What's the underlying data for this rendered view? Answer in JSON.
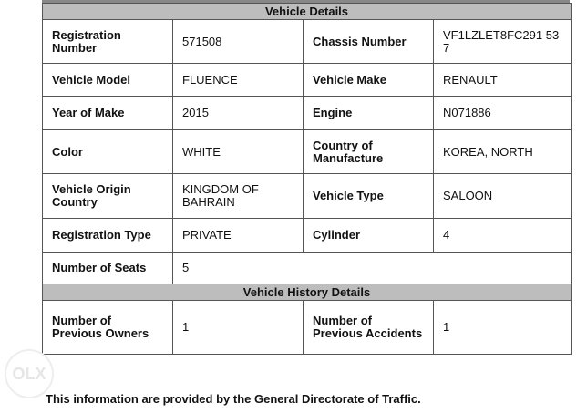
{
  "vehicle_details": {
    "title": "Vehicle Details",
    "rows": [
      [
        {
          "label": "Registration Number",
          "value": "571508"
        },
        {
          "label": "Chassis Number",
          "value": "VF1LZLET8FC291 537"
        }
      ],
      [
        {
          "label": "Vehicle Model",
          "value": "FLUENCE"
        },
        {
          "label": "Vehicle Make",
          "value": "RENAULT"
        }
      ],
      [
        {
          "label": "Year of Make",
          "value": "2015"
        },
        {
          "label": "Engine",
          "value": "N071886"
        }
      ],
      [
        {
          "label": "Color",
          "value": "WHITE"
        },
        {
          "label": "Country of Manufacture",
          "value": "KOREA, NORTH"
        }
      ],
      [
        {
          "label": "Vehicle Origin Country",
          "value": "KINGDOM OF BAHRAIN"
        },
        {
          "label": "Vehicle Type",
          "value": "SALOON"
        }
      ],
      [
        {
          "label": "Registration Type",
          "value": "PRIVATE"
        },
        {
          "label": "Cylinder",
          "value": "4"
        }
      ],
      [
        {
          "label": "Number of Seats",
          "value": "5"
        }
      ]
    ]
  },
  "history": {
    "title": "Vehicle History Details",
    "rows": [
      [
        {
          "label": "Number of Previous Owners",
          "value": "1"
        },
        {
          "label": "Number of Previous Accidents",
          "value": "1"
        }
      ]
    ]
  },
  "footer": "This information are provided by the General Directorate of Traffic.",
  "watermark": "OLX"
}
